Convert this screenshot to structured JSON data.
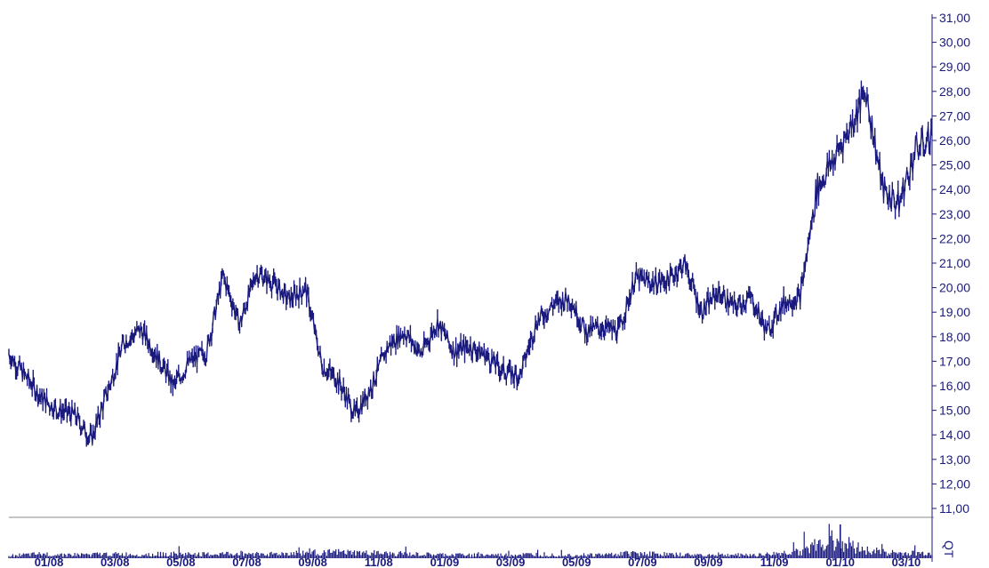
{
  "chart_data": [
    {
      "type": "line",
      "title": "",
      "xlabel": "",
      "ylabel": "",
      "ylim": [
        11,
        31
      ],
      "yticks": [
        11,
        12,
        13,
        14,
        15,
        16,
        17,
        18,
        19,
        20,
        21,
        22,
        23,
        24,
        25,
        26,
        27,
        28,
        29,
        30,
        31
      ],
      "ytick_labels": [
        "11,00",
        "12,00",
        "13,00",
        "14,00",
        "15,00",
        "16,00",
        "17,00",
        "18,00",
        "19,00",
        "20,00",
        "21,00",
        "22,00",
        "23,00",
        "24,00",
        "25,00",
        "26,00",
        "27,00",
        "28,00",
        "29,00",
        "30,00",
        "31,00"
      ],
      "x_months": [
        "12/07",
        "01/08",
        "02/08",
        "03/08",
        "04/08",
        "05/08",
        "06/08",
        "07/08",
        "08/08",
        "09/08",
        "10/08",
        "11/08",
        "12/08",
        "01/09",
        "02/09",
        "03/09",
        "04/09",
        "05/09",
        "06/09",
        "07/09",
        "08/09",
        "09/09",
        "10/09",
        "11/09",
        "12/09",
        "01/10",
        "02/10",
        "03/10",
        "04/10"
      ],
      "xtick_labels": [
        "01/08",
        "03/08",
        "05/08",
        "07/08",
        "09/08",
        "11/08",
        "01/09",
        "03/09",
        "05/09",
        "07/09",
        "09/09",
        "11/09",
        "01/10",
        "03/10"
      ],
      "grid": false,
      "series": [
        {
          "color": "#1a1a7e",
          "points": [
            [
              "12/07",
              17.3
            ],
            [
              "01/08",
              15.5
            ],
            [
              "01/08",
              15.0
            ],
            [
              "02/08",
              14.8
            ],
            [
              "02/08",
              13.8
            ],
            [
              "03/08",
              15.8
            ],
            [
              "03/08",
              17.8
            ],
            [
              "04/08",
              18.3
            ],
            [
              "04/08",
              17.2
            ],
            [
              "05/08",
              16.0
            ],
            [
              "05/08",
              17.0
            ],
            [
              "06/08",
              17.4
            ],
            [
              "06/08",
              20.5
            ],
            [
              "07/08",
              18.5
            ],
            [
              "07/08",
              20.6
            ],
            [
              "08/08",
              20.2
            ],
            [
              "08/08",
              19.5
            ],
            [
              "09/08",
              20.0
            ],
            [
              "09/08",
              16.8
            ],
            [
              "10/08",
              16.2
            ],
            [
              "10/08",
              14.8
            ],
            [
              "11/08",
              16.0
            ],
            [
              "11/08",
              17.6
            ],
            [
              "12/08",
              18.2
            ],
            [
              "12/08",
              17.3
            ],
            [
              "01/09",
              18.6
            ],
            [
              "01/09",
              17.4
            ],
            [
              "02/09",
              17.6
            ],
            [
              "02/09",
              17.2
            ],
            [
              "03/09",
              16.6
            ],
            [
              "03/09",
              16.4
            ],
            [
              "04/09",
              18.6
            ],
            [
              "04/09",
              19.3
            ],
            [
              "05/09",
              19.6
            ],
            [
              "05/09",
              18.2
            ],
            [
              "06/09",
              18.4
            ],
            [
              "06/09",
              18.2
            ],
            [
              "07/09",
              20.4
            ],
            [
              "07/09",
              20.2
            ],
            [
              "08/09",
              20.3
            ],
            [
              "08/09",
              21.0
            ],
            [
              "09/09",
              19.0
            ],
            [
              "09/09",
              19.8
            ],
            [
              "10/09",
              19.2
            ],
            [
              "10/09",
              19.6
            ],
            [
              "11/09",
              18.2
            ],
            [
              "11/09",
              19.4
            ],
            [
              "12/09",
              19.6
            ],
            [
              "12/09",
              24.0
            ],
            [
              "01/10",
              25.2
            ],
            [
              "01/10",
              26.5
            ],
            [
              "02/10",
              28.0
            ],
            [
              "02/10",
              24.0
            ],
            [
              "03/10",
              23.4
            ],
            [
              "03/10",
              25.6
            ],
            [
              "04/10",
              26.2
            ]
          ]
        }
      ]
    },
    {
      "type": "bar",
      "ylabel": "QT",
      "series": [
        {
          "color": "#1a1a7e",
          "points": [
            [
              "12/07",
              0.1
            ],
            [
              "01/08",
              0.15
            ],
            [
              "02/08",
              0.13
            ],
            [
              "03/08",
              0.15
            ],
            [
              "04/08",
              0.14
            ],
            [
              "05/08",
              0.16
            ],
            [
              "06/08",
              0.14
            ],
            [
              "07/08",
              0.18
            ],
            [
              "08/08",
              0.16
            ],
            [
              "09/08",
              0.2
            ],
            [
              "10/08",
              0.22
            ],
            [
              "11/08",
              0.18
            ],
            [
              "12/08",
              0.15
            ],
            [
              "01/09",
              0.13
            ],
            [
              "02/09",
              0.12
            ],
            [
              "03/09",
              0.12
            ],
            [
              "04/09",
              0.14
            ],
            [
              "05/09",
              0.12
            ],
            [
              "06/09",
              0.13
            ],
            [
              "07/09",
              0.2
            ],
            [
              "08/09",
              0.14
            ],
            [
              "09/09",
              0.12
            ],
            [
              "10/09",
              0.12
            ],
            [
              "11/09",
              0.14
            ],
            [
              "12/09",
              0.25
            ],
            [
              "01/10",
              0.7
            ],
            [
              "02/10",
              0.3
            ],
            [
              "03/10",
              0.18
            ],
            [
              "04/10",
              0.18
            ]
          ]
        }
      ]
    }
  ]
}
